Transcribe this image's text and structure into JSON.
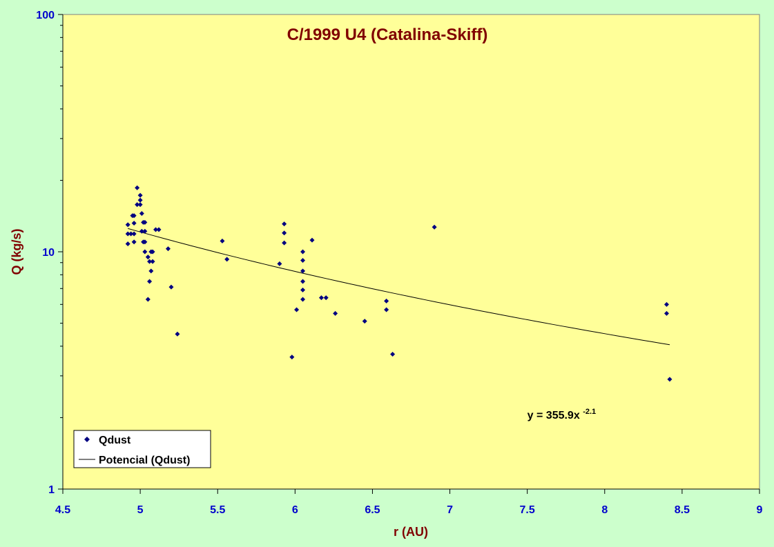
{
  "chart_data": {
    "type": "scatter",
    "title": "C/1999 U4 (Catalina-Skiff)",
    "xlabel": "r (AU)",
    "ylabel": "Q (kg/s)",
    "xlim": [
      4.5,
      9
    ],
    "ylim": [
      1,
      100
    ],
    "yscale": "log",
    "x_ticks": [
      "4.5",
      "5",
      "5.5",
      "6",
      "6.5",
      "7",
      "7.5",
      "8",
      "8.5",
      "9"
    ],
    "y_ticks": [
      "1",
      "10",
      "100"
    ],
    "grid": false,
    "legend_position": "bottom-left",
    "colors": {
      "page_background": "#CCFFCC",
      "plot_background": "#FFFF99",
      "marker": "#000080",
      "trendline": "#000000",
      "title": "#800000",
      "tick_labels": "#0000CC"
    },
    "series": [
      {
        "name": "Qdust",
        "type": "scatter",
        "marker": "diamond",
        "points": [
          [
            4.92,
            13.0
          ],
          [
            4.92,
            11.9
          ],
          [
            4.92,
            10.8
          ],
          [
            4.94,
            11.9
          ],
          [
            4.95,
            14.2
          ],
          [
            4.96,
            14.2
          ],
          [
            4.96,
            13.2
          ],
          [
            4.96,
            11.9
          ],
          [
            4.96,
            11.0
          ],
          [
            4.98,
            18.6
          ],
          [
            4.98,
            15.8
          ],
          [
            5.0,
            17.3
          ],
          [
            5.0,
            16.5
          ],
          [
            5.0,
            15.8
          ],
          [
            5.01,
            14.5
          ],
          [
            5.01,
            12.2
          ],
          [
            5.02,
            13.3
          ],
          [
            5.02,
            11.0
          ],
          [
            5.03,
            13.3
          ],
          [
            5.03,
            12.2
          ],
          [
            5.03,
            11.0
          ],
          [
            5.03,
            10.0
          ],
          [
            5.05,
            9.5
          ],
          [
            5.05,
            6.3
          ],
          [
            5.06,
            9.1
          ],
          [
            5.06,
            7.5
          ],
          [
            5.07,
            10.0
          ],
          [
            5.07,
            8.3
          ],
          [
            5.08,
            10.0
          ],
          [
            5.08,
            9.1
          ],
          [
            5.1,
            12.4
          ],
          [
            5.12,
            12.4
          ],
          [
            5.18,
            10.3
          ],
          [
            5.2,
            7.1
          ],
          [
            5.24,
            4.5
          ],
          [
            5.53,
            11.1
          ],
          [
            5.56,
            9.3
          ],
          [
            5.9,
            8.9
          ],
          [
            5.93,
            13.1
          ],
          [
            5.93,
            12.0
          ],
          [
            5.93,
            10.9
          ],
          [
            5.98,
            3.6
          ],
          [
            6.01,
            5.7
          ],
          [
            6.05,
            10.0
          ],
          [
            6.05,
            9.2
          ],
          [
            6.05,
            8.3
          ],
          [
            6.05,
            7.5
          ],
          [
            6.05,
            6.9
          ],
          [
            6.05,
            6.3
          ],
          [
            6.11,
            11.2
          ],
          [
            6.17,
            6.4
          ],
          [
            6.2,
            6.4
          ],
          [
            6.26,
            5.5
          ],
          [
            6.45,
            5.1
          ],
          [
            6.59,
            6.2
          ],
          [
            6.59,
            5.7
          ],
          [
            6.63,
            3.7
          ],
          [
            6.9,
            12.7
          ],
          [
            8.4,
            6.0
          ],
          [
            8.4,
            5.5
          ],
          [
            8.42,
            2.9
          ]
        ]
      },
      {
        "name": "Potencial (Qdust)",
        "type": "line",
        "equation": "y = 355.9x",
        "equation_exponent": "-2.1",
        "coefficient": 355.9,
        "exponent": -2.1,
        "x_range": [
          4.92,
          8.42
        ]
      }
    ],
    "annotations": [
      {
        "text": "y = 355.9x",
        "superscript": "-2.1",
        "at": [
          7.5,
          1.98
        ]
      }
    ]
  }
}
